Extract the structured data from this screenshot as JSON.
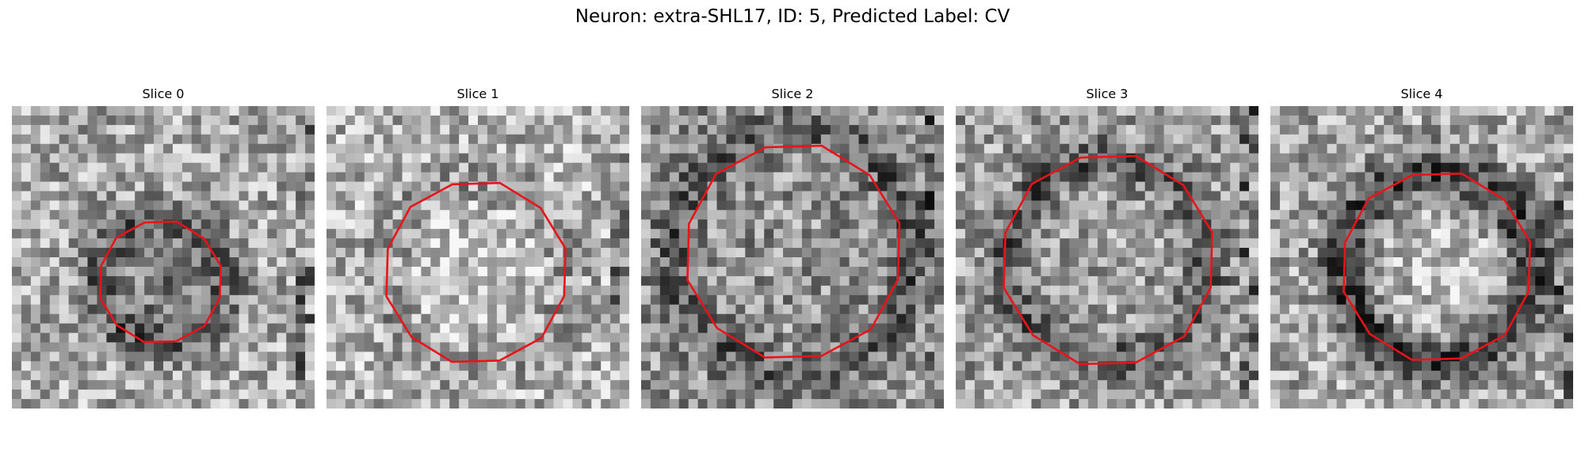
{
  "figure": {
    "title": "Neuron: extra-SHL17, ID: 5, Predicted Label: CV"
  },
  "slices": [
    {
      "title": "Slice 0",
      "contour_color": "#e8141a",
      "rim": "dark-interior"
    },
    {
      "title": "Slice 1",
      "contour_color": "#e8141a",
      "rim": "faint"
    },
    {
      "title": "Slice 2",
      "contour_color": "#e8141a",
      "rim": "dark-outer"
    },
    {
      "title": "Slice 3",
      "contour_color": "#e8141a",
      "rim": "dark-inner"
    },
    {
      "title": "Slice 4",
      "contour_color": "#e8141a",
      "rim": "dark-strong"
    }
  ],
  "colormap": "gray"
}
